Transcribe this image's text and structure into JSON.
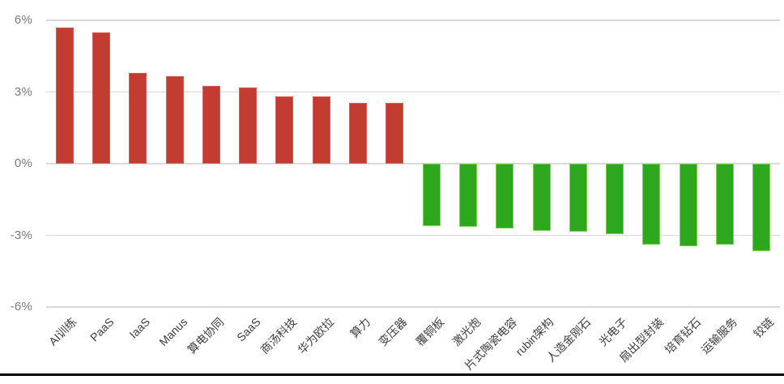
{
  "chart_data": {
    "type": "bar",
    "title": "",
    "xlabel": "",
    "ylabel": "",
    "categories": [
      "AI训练",
      "PaaS",
      "IaaS",
      "Manus",
      "算电协同",
      "SaaS",
      "商汤科技",
      "华为欧拉",
      "算力",
      "变压器",
      "覆铜板",
      "激光炮",
      "片式陶瓷电容",
      "rubin架构",
      "人造金刚石",
      "光电子",
      "扇出型封装",
      "培育钻石",
      "运输服务",
      "铰链"
    ],
    "values": [
      5.7,
      5.5,
      3.8,
      3.65,
      3.25,
      3.2,
      2.8,
      2.8,
      2.55,
      2.55,
      -2.6,
      -2.65,
      -2.7,
      -2.8,
      -2.85,
      -2.95,
      -3.4,
      -3.45,
      -3.4,
      -3.65
    ],
    "value_unit": "%",
    "ylim": [
      -6,
      6
    ],
    "yticks": [
      6,
      3,
      0,
      -3,
      -6
    ],
    "ytick_labels": [
      "6%",
      "3%",
      "0%",
      "-3%",
      "-6%"
    ],
    "grid": true,
    "legend": null,
    "colors": {
      "positive_fill": "#c23c32",
      "positive_border": "#cd6358",
      "negative_fill": "#2da81e",
      "negative_border": "#82d157",
      "gridline": "#dadada",
      "y_label_text": "#7a7a7a",
      "category_text": "#3d3d3d",
      "background": "#ffffff",
      "bottom_rule": "#000000"
    }
  }
}
